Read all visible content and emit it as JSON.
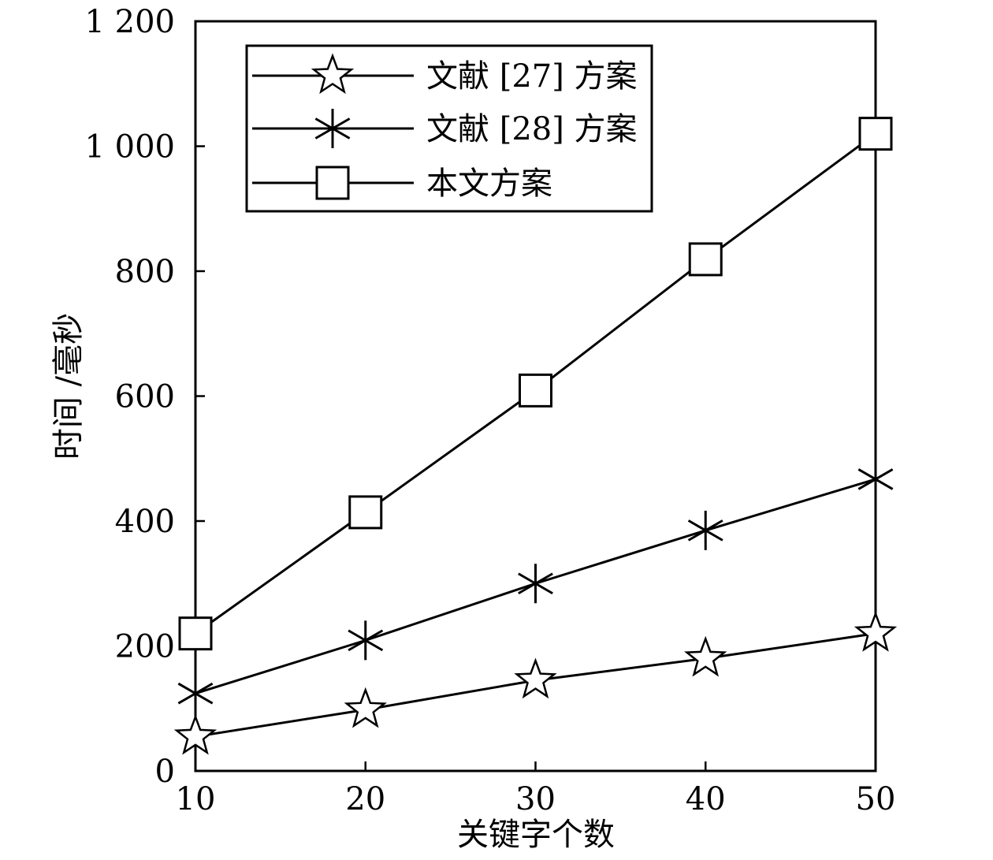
{
  "chart_data": {
    "type": "line",
    "x": [
      10,
      20,
      30,
      40,
      50
    ],
    "xlabel": "关键字个数",
    "ylabel": "时间 /毫秒",
    "xlim": [
      10,
      50
    ],
    "ylim": [
      0,
      1200
    ],
    "xticks": [
      {
        "value": 10,
        "label": "10"
      },
      {
        "value": 20,
        "label": "20"
      },
      {
        "value": 30,
        "label": "30"
      },
      {
        "value": 40,
        "label": "40"
      },
      {
        "value": 50,
        "label": "50"
      }
    ],
    "yticks": [
      {
        "value": 0,
        "label": "0"
      },
      {
        "value": 200,
        "label": "200"
      },
      {
        "value": 400,
        "label": "400"
      },
      {
        "value": 600,
        "label": "600"
      },
      {
        "value": 800,
        "label": "800"
      },
      {
        "value": 1000,
        "label": "1 000"
      },
      {
        "value": 1200,
        "label": "1 200"
      }
    ],
    "grid": false,
    "legend_position": "top-left",
    "color": "#000000",
    "series": [
      {
        "name": "文献 [27] 方案",
        "marker": "star",
        "values": [
          55,
          98,
          145,
          180,
          220
        ]
      },
      {
        "name": "文献 [28] 方案",
        "marker": "asterisk",
        "values": [
          124,
          209,
          300,
          385,
          467
        ]
      },
      {
        "name": "本文方案",
        "marker": "square",
        "values": [
          220,
          414,
          609,
          819,
          1020
        ]
      }
    ]
  }
}
